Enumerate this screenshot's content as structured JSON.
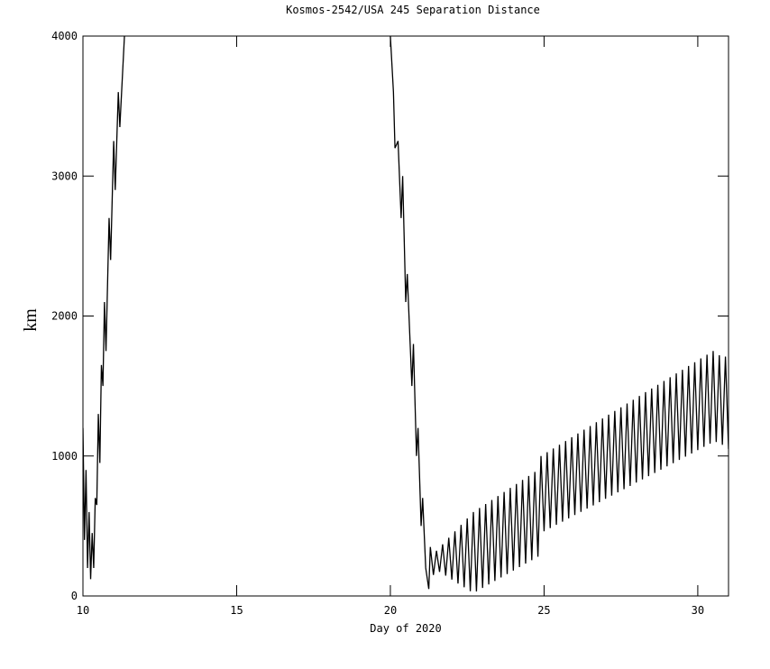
{
  "chart_data": {
    "type": "line",
    "title": "Kosmos-2542/USA 245 Separation Distance",
    "xlabel": "Day of 2020",
    "ylabel": "km",
    "color": "#000000",
    "xlim": [
      10,
      31
    ],
    "ylim": [
      0,
      4000
    ],
    "xticks": [
      10,
      15,
      20,
      25,
      30
    ],
    "yticks": [
      0,
      1000,
      2000,
      3000,
      4000
    ],
    "x": [
      10.0,
      10.05,
      10.1,
      10.15,
      10.2,
      10.25,
      10.3,
      10.35,
      10.4,
      10.45,
      10.5,
      10.55,
      10.6,
      10.65,
      10.7,
      10.75,
      10.85,
      10.9,
      11.0,
      11.05,
      11.15,
      11.2,
      11.35,
      15,
      20.0,
      20.1,
      20.15,
      20.25,
      20.35,
      20.4,
      20.5,
      20.55,
      20.7,
      20.75,
      20.85,
      20.9,
      21.0,
      21.05,
      21.15,
      21.25,
      21.3,
      21.4,
      21.5,
      21.6,
      21.7,
      21.8,
      21.9,
      22.0,
      22.1,
      22.2,
      22.3,
      22.4,
      22.5,
      22.6,
      22.7,
      22.8,
      22.9,
      23.0,
      23.1,
      23.2,
      23.3,
      23.4,
      23.5,
      23.6,
      23.7,
      23.8,
      23.9,
      24.0,
      24.1,
      24.2,
      24.3,
      24.4,
      24.5,
      24.6,
      24.7,
      24.8,
      24.9,
      25.0,
      25.1,
      25.2,
      25.3,
      25.4,
      25.5,
      25.6,
      25.7,
      25.8,
      25.9,
      26.0,
      26.1,
      26.2,
      26.3,
      26.4,
      26.5,
      26.6,
      26.7,
      26.8,
      26.9,
      27.0,
      27.1,
      27.2,
      27.3,
      27.4,
      27.5,
      27.6,
      27.7,
      27.8,
      27.9,
      28.0,
      28.1,
      28.2,
      28.3,
      28.4,
      28.5,
      28.6,
      28.7,
      28.8,
      28.9,
      29.0,
      29.1,
      29.2,
      29.3,
      29.4,
      29.5,
      29.6,
      29.7,
      29.8,
      29.9,
      30.0,
      30.1,
      30.2,
      30.3,
      30.4,
      30.5,
      30.6,
      30.7,
      30.8,
      30.9,
      31.0
    ],
    "values": [
      1200,
      400,
      900,
      200,
      600,
      120,
      450,
      200,
      700,
      650,
      1300,
      950,
      1650,
      1500,
      2100,
      1750,
      2700,
      2400,
      3250,
      2900,
      3600,
      3350,
      4000,
      null,
      4000,
      3600,
      3200,
      3250,
      2700,
      3000,
      2100,
      2300,
      1500,
      1800,
      1000,
      1200,
      500,
      700,
      200,
      50,
      350,
      150,
      323,
      172,
      369,
      145,
      416,
      117,
      462,
      89,
      508,
      62,
      554,
      34,
      600,
      32,
      629,
      57,
      657,
      82,
      686,
      107,
      714,
      132,
      743,
      156,
      772,
      181,
      800,
      206,
      829,
      231,
      857,
      255,
      886,
      280,
      1000,
      462,
      1027,
      485,
      1054,
      508,
      1080,
      531,
      1107,
      554,
      1134,
      578,
      1161,
      601,
      1188,
      624,
      1214,
      647,
      1241,
      670,
      1268,
      694,
      1295,
      717,
      1322,
      740,
      1348,
      763,
      1375,
      786,
      1402,
      810,
      1429,
      833,
      1456,
      856,
      1482,
      879,
      1509,
      902,
      1536,
      926,
      1563,
      949,
      1590,
      972,
      1616,
      995,
      1643,
      1018,
      1670,
      1042,
      1697,
      1065,
      1724,
      1088,
      1750,
      1100,
      1720,
      1080,
      1710,
      1050
    ]
  }
}
